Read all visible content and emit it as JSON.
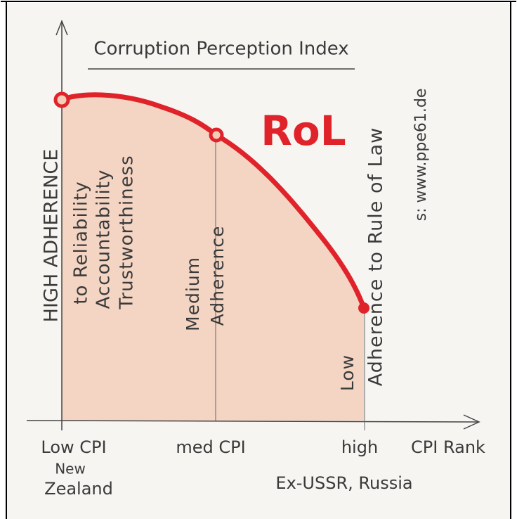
{
  "title": "Corruption Perception Index",
  "curve_label": "RoL",
  "labels": {
    "high_adherence": "HIGH ADHERENCE",
    "reliability": "to Reliability",
    "accountability": "Accountability",
    "trustworthiness": "Trustworthiness",
    "medium": "Medium",
    "medium_adherence": "Adherence",
    "low": "Low",
    "low_adherence": "Adherence to Rule of Law"
  },
  "source": "s: www.ppe61.de",
  "x_labels": {
    "low_cpi": "Low CPI",
    "new": "New",
    "zealand": "Zealand",
    "med_cpi": "med CPI",
    "high": "high",
    "cpi_rank": "CPI Rank",
    "ex_ussr": "Ex-USSR, Russia"
  }
}
